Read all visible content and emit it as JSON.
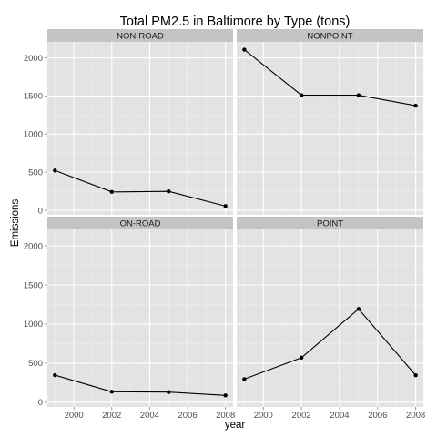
{
  "chart_data": {
    "type": "line",
    "title": "Total PM2.5 in Baltimore by Type (tons)",
    "xlabel": "year",
    "ylabel": "Emissions",
    "x_ticks": [
      2000,
      2002,
      2004,
      2006,
      2008
    ],
    "y_ticks": [
      0,
      500,
      1000,
      1500,
      2000
    ],
    "xlim": [
      1998.6,
      2008.4
    ],
    "ylim": [
      -60,
      2210
    ],
    "grid": true,
    "facets": [
      {
        "label": "NON-ROAD",
        "x": [
          1999,
          2002,
          2005,
          2008
        ],
        "values": [
          522,
          241,
          248,
          55
        ]
      },
      {
        "label": "NONPOINT",
        "x": [
          1999,
          2002,
          2005,
          2008
        ],
        "values": [
          2108,
          1510,
          1510,
          1373
        ]
      },
      {
        "label": "ON-ROAD",
        "x": [
          1999,
          2002,
          2005,
          2008
        ],
        "values": [
          347,
          134,
          130,
          88
        ]
      },
      {
        "label": "POINT",
        "x": [
          1999,
          2002,
          2005,
          2008
        ],
        "values": [
          296,
          570,
          1193,
          345
        ]
      }
    ]
  }
}
